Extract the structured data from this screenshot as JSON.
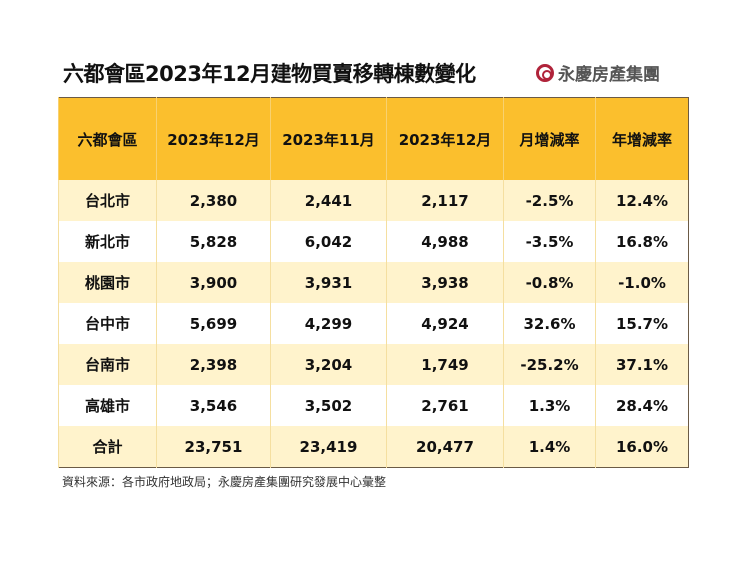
{
  "title": "六都會區2023年12月建物買賣移轉棟數變化",
  "logo": {
    "text": "永慶房產集團",
    "color": "#b0233a"
  },
  "colors": {
    "header": "#fbbf2d",
    "row_highlight": "#fff3cc"
  },
  "table": {
    "headers": [
      "六都會區",
      "2023年12月",
      "2023年11月",
      "2023年12月",
      "月增減率",
      "年增減率"
    ],
    "rows": [
      [
        "台北市",
        "2,380",
        "2,441",
        "2,117",
        "-2.5%",
        "12.4%"
      ],
      [
        "新北市",
        "5,828",
        "6,042",
        "4,988",
        "-3.5%",
        "16.8%"
      ],
      [
        "桃園市",
        "3,900",
        "3,931",
        "3,938",
        "-0.8%",
        "-1.0%"
      ],
      [
        "台中市",
        "5,699",
        "4,299",
        "4,924",
        "32.6%",
        "15.7%"
      ],
      [
        "台南市",
        "2,398",
        "3,204",
        "1,749",
        "-25.2%",
        "37.1%"
      ],
      [
        "高雄市",
        "3,546",
        "3,502",
        "2,761",
        "1.3%",
        "28.4%"
      ],
      [
        "合計",
        "23,751",
        "23,419",
        "20,477",
        "1.4%",
        "16.0%"
      ]
    ]
  },
  "source": "資料來源：各市政府地政局；永慶房產集團研究發展中心彙整"
}
